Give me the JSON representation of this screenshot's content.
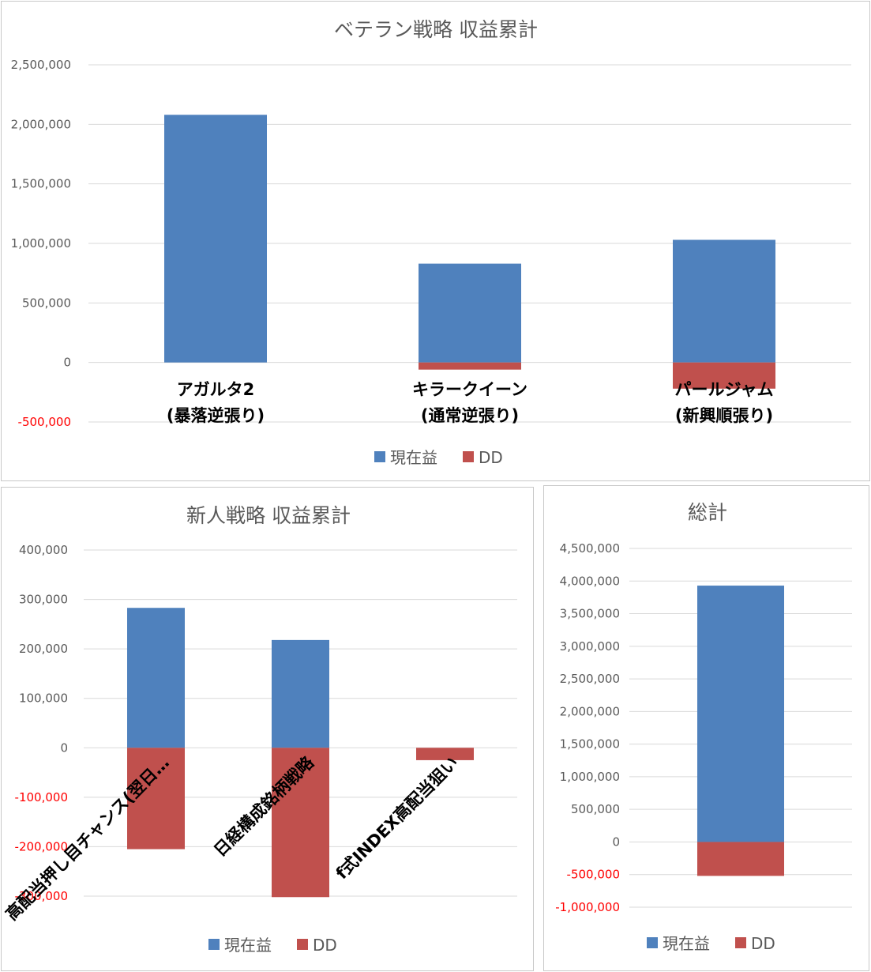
{
  "colors": {
    "profit": "#4f81bd",
    "dd": "#c0504d",
    "neg_tick": "#ff0000"
  },
  "legend": {
    "profit": "現在益",
    "dd": "DD"
  },
  "chart_data": [
    {
      "id": "veteran",
      "type": "bar",
      "stacked": true,
      "title": "ベテラン戦略 収益累計",
      "categories": [
        [
          "アガルタ2",
          "(暴落逆張り)"
        ],
        [
          "キラークイーン",
          "(通常逆張り)"
        ],
        [
          "パールジャム",
          "(新興順張り)"
        ]
      ],
      "series": [
        {
          "name": "現在益",
          "values": [
            2080000,
            830000,
            1030000
          ]
        },
        {
          "name": "DD",
          "values": [
            0,
            -60000,
            -220000
          ]
        }
      ],
      "ylim": [
        -500000,
        2500000
      ],
      "yticks": [
        2500000,
        2000000,
        1500000,
        1000000,
        500000,
        0,
        -500000
      ],
      "ytick_labels": [
        "2,500,000",
        "2,000,000",
        "1,500,000",
        "1,000,000",
        "500,000",
        "0",
        "-500,000"
      ],
      "legend_position": "bottom"
    },
    {
      "id": "rookie",
      "type": "bar",
      "stacked": true,
      "title": "新人戦略 収益累計",
      "categories": [
        "高配当押し目チャンス(翌日…",
        "日経構成銘柄戦略",
        "f式INDEX高配当狙い"
      ],
      "series": [
        {
          "name": "現在益",
          "values": [
            283000,
            218000,
            0
          ]
        },
        {
          "name": "DD",
          "values": [
            -205000,
            -302000,
            -25000
          ]
        }
      ],
      "ylim": [
        -300000,
        400000
      ],
      "yticks": [
        400000,
        300000,
        200000,
        100000,
        0,
        -100000,
        -200000,
        -300000
      ],
      "ytick_labels": [
        "400,000",
        "300,000",
        "200,000",
        "100,000",
        "0",
        "-100,000",
        "-200,000",
        "-300,000"
      ],
      "legend_position": "bottom"
    },
    {
      "id": "total",
      "type": "bar",
      "stacked": true,
      "title": "総計",
      "categories": [
        ""
      ],
      "series": [
        {
          "name": "現在益",
          "values": [
            3930000
          ]
        },
        {
          "name": "DD",
          "values": [
            -520000
          ]
        }
      ],
      "ylim": [
        -1000000,
        4500000
      ],
      "yticks": [
        4500000,
        4000000,
        3500000,
        3000000,
        2500000,
        2000000,
        1500000,
        1000000,
        500000,
        0,
        -500000,
        -1000000
      ],
      "ytick_labels": [
        "4,500,000",
        "4,000,000",
        "3,500,000",
        "3,000,000",
        "2,500,000",
        "2,000,000",
        "1,500,000",
        "1,000,000",
        "500,000",
        "0",
        "-500,000",
        "-1,000,000"
      ],
      "legend_position": "bottom"
    }
  ]
}
